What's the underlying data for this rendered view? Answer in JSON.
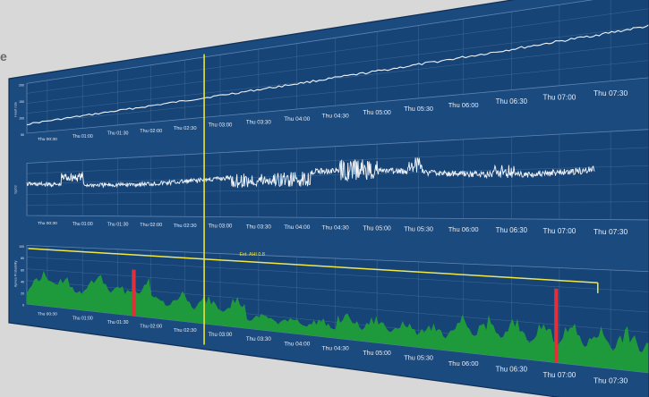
{
  "colors": {
    "background": "#d8d8d8",
    "panel": "#1b4a7e",
    "panel_dark": "#123a66",
    "grid": "#5f86b4",
    "trace": "#f0f4fa",
    "cursor": "#e8e23a",
    "area": "#1e9a3c",
    "spike": "#e0303a",
    "ahi_line": "#f2e84a"
  },
  "edge_letter": "e",
  "panels": [
    {
      "id": "top",
      "axis_label": "Heart rate",
      "y_ticks": [
        "200",
        "150",
        "100",
        "50"
      ],
      "x_ticks": [
        "Thu 00:30",
        "Thu 01:00",
        "Thu 01:30",
        "Thu 02:00",
        "Thu 02:30",
        "Thu 03:00",
        "Thu 03:30",
        "Thu 04:00",
        "Thu 04:30",
        "Thu 05:00",
        "Thu 05:30",
        "Thu 06:00",
        "Thu 06:30",
        "Thu 07:00",
        "Thu 07:30"
      ]
    },
    {
      "id": "middle",
      "axis_label": "SpO2",
      "y_ticks": [
        "",
        "",
        "",
        "",
        "",
        ""
      ],
      "x_ticks": [
        "Thu 00:30",
        "Thu 01:00",
        "Thu 01:30",
        "Thu 02:00",
        "Thu 02:30",
        "Thu 03:00",
        "Thu 03:30",
        "Thu 04:00",
        "Thu 04:30",
        "Thu 05:00",
        "Thu 05:30",
        "Thu 06:00",
        "Thu 06:30",
        "Thu 07:00",
        "Thu 07:30"
      ]
    },
    {
      "id": "bottom",
      "axis_label": "Apnea Probability",
      "y_ticks": [
        "100",
        "80",
        "60",
        "40",
        "20",
        "0"
      ],
      "ahi_label": "Est. AHI 0.8",
      "x_ticks": [
        "Thu 00:30",
        "Thu 01:00",
        "Thu 01:30",
        "Thu 02:00",
        "Thu 02:30",
        "Thu 03:00",
        "Thu 03:30",
        "Thu 04:00",
        "Thu 04:30",
        "Thu 05:00",
        "Thu 05:30",
        "Thu 06:00",
        "Thu 06:30",
        "Thu 07:00",
        "Thu 07:30"
      ]
    }
  ]
}
